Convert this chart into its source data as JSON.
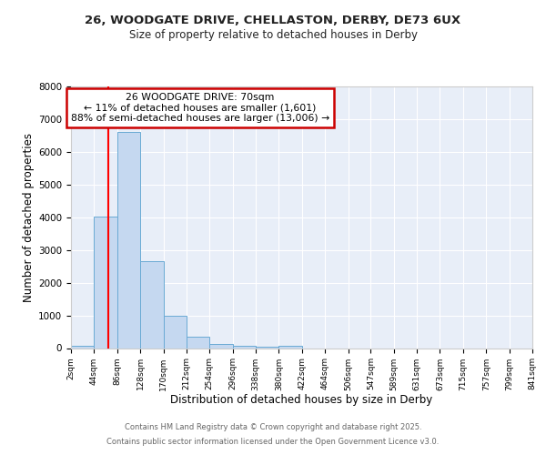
{
  "title_line1": "26, WOODGATE DRIVE, CHELLASTON, DERBY, DE73 6UX",
  "title_line2": "Size of property relative to detached houses in Derby",
  "xlabel": "Distribution of detached houses by size in Derby",
  "ylabel": "Number of detached properties",
  "bar_edges": [
    2,
    44,
    86,
    128,
    170,
    212,
    254,
    296,
    338,
    380,
    422,
    464,
    506,
    547,
    589,
    631,
    673,
    715,
    757,
    799,
    841
  ],
  "bar_heights": [
    70,
    4020,
    6620,
    2650,
    980,
    340,
    130,
    70,
    50,
    60,
    0,
    0,
    0,
    0,
    0,
    0,
    0,
    0,
    0,
    0
  ],
  "bar_color": "#c5d8f0",
  "bar_edgecolor": "#6aaad4",
  "red_line_x": 70,
  "annotation_title": "26 WOODGATE DRIVE: 70sqm",
  "annotation_line2": "← 11% of detached houses are smaller (1,601)",
  "annotation_line3": "88% of semi-detached houses are larger (13,006) →",
  "annotation_box_facecolor": "#ffffff",
  "annotation_box_edgecolor": "#cc0000",
  "footer_line1": "Contains HM Land Registry data © Crown copyright and database right 2025.",
  "footer_line2": "Contains public sector information licensed under the Open Government Licence v3.0.",
  "ylim": [
    0,
    8000
  ],
  "fig_facecolor": "#ffffff",
  "plot_facecolor": "#e8eef8",
  "grid_color": "#ffffff",
  "tick_labels": [
    "2sqm",
    "44sqm",
    "86sqm",
    "128sqm",
    "170sqm",
    "212sqm",
    "254sqm",
    "296sqm",
    "338sqm",
    "380sqm",
    "422sqm",
    "464sqm",
    "506sqm",
    "547sqm",
    "589sqm",
    "631sqm",
    "673sqm",
    "715sqm",
    "757sqm",
    "799sqm",
    "841sqm"
  ]
}
